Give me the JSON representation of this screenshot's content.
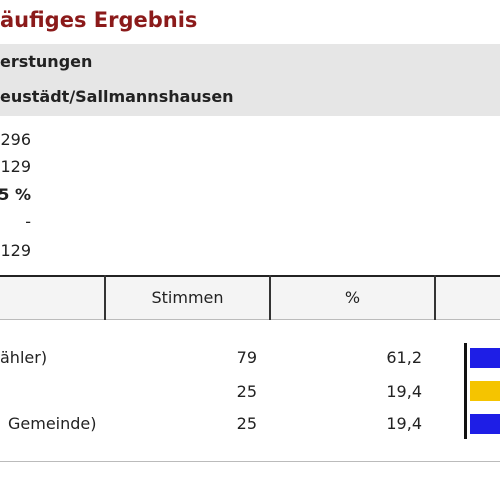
{
  "header": {
    "title": "äufiges Ergebnis",
    "municipality": "erstungen",
    "district": "eustädt/Sallmannshausen"
  },
  "stats": [
    "296",
    "129",
    "5 %",
    "-",
    "129"
  ],
  "table": {
    "columns": [
      "Stimmen",
      "%"
    ],
    "rows": [
      [
        "ähler)",
        "79",
        "61,2"
      ],
      [
        "",
        "25",
        "19,4"
      ],
      [
        "Gemeinde)",
        "25",
        "19,4"
      ]
    ]
  }
}
